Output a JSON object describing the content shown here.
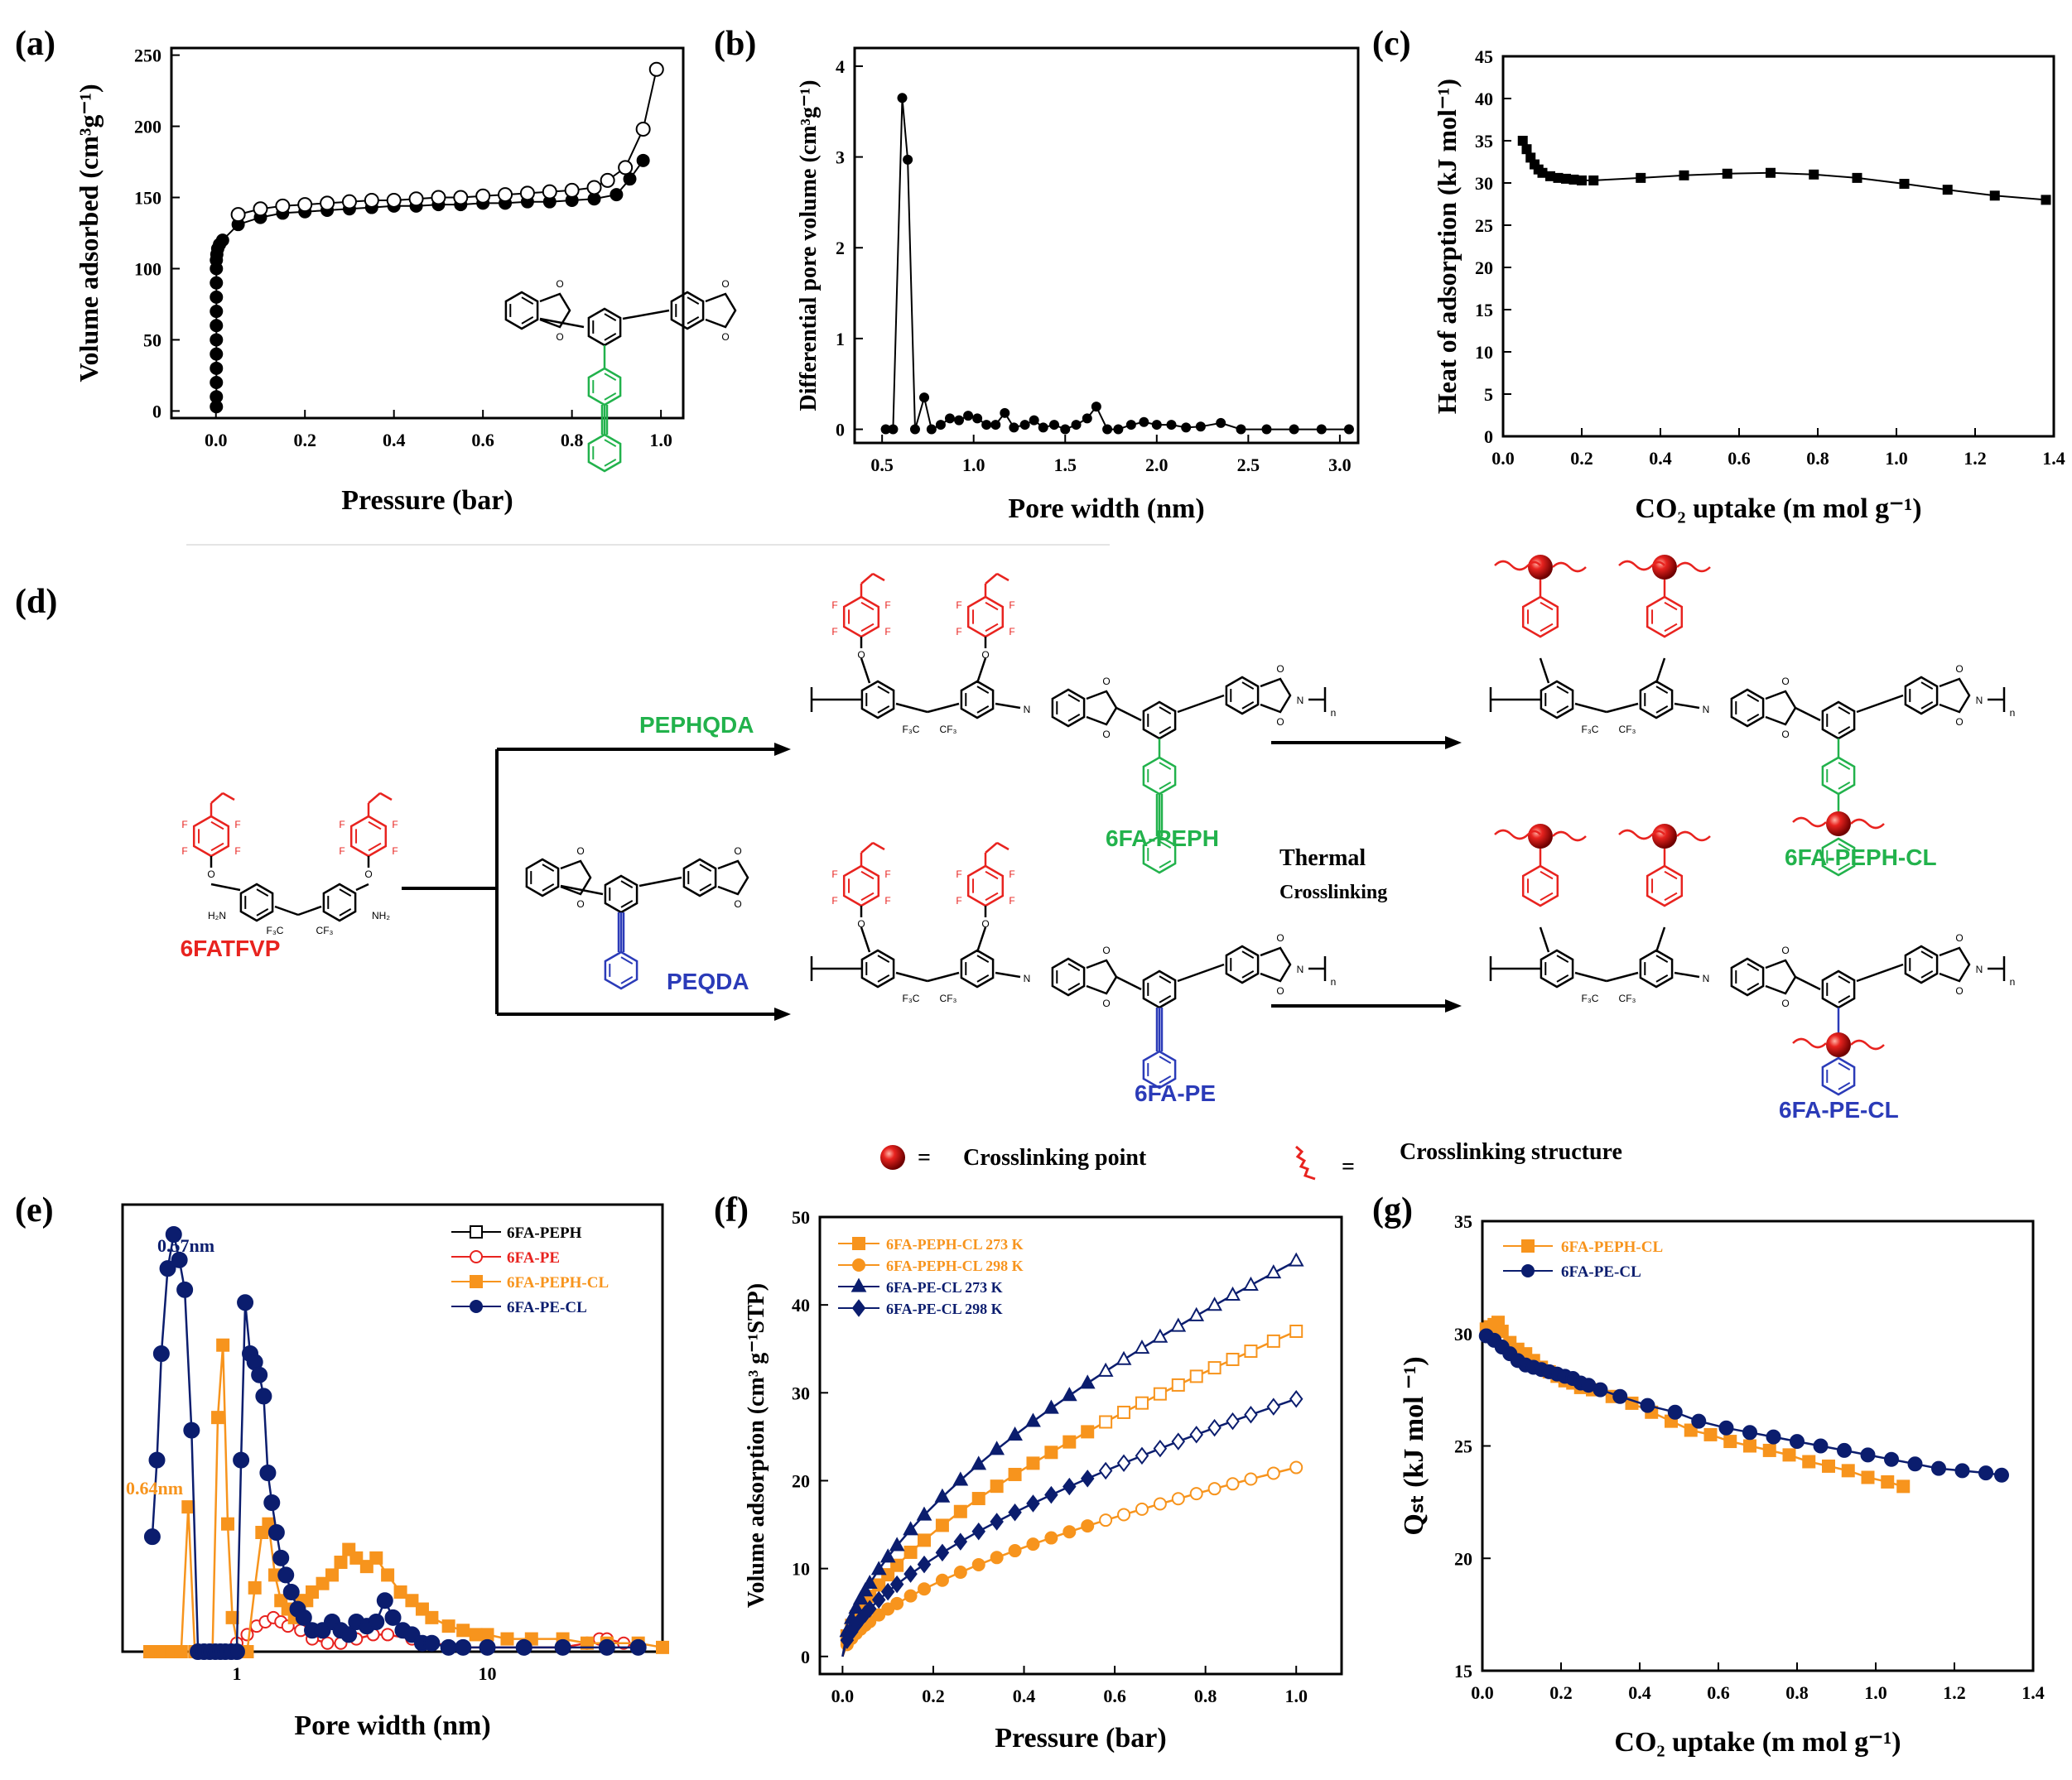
{
  "chart_data": [
    {
      "panel": "(a)",
      "type": "scatter",
      "xlabel": "Pressure (bar)",
      "ylabel": "Volume adsorbed (cm³g⁻¹)",
      "xlim": [
        -0.1,
        1.05
      ],
      "ylim": [
        -5,
        255
      ],
      "xticks": [
        "0.0",
        "0.2",
        "0.4",
        "0.6",
        "0.8",
        "1.0"
      ],
      "yticks": [
        "0",
        "50",
        "100",
        "150",
        "200",
        "250"
      ],
      "series": [
        {
          "name": "",
          "marker": "filled-circle",
          "x": [
            0.001,
            0.001,
            0.001,
            0.001,
            0.001,
            0.001,
            0.001,
            0.001,
            0.001,
            0.001,
            0.001,
            0.001,
            0.002,
            0.004,
            0.008,
            0.015,
            0.05,
            0.1,
            0.15,
            0.2,
            0.25,
            0.3,
            0.35,
            0.4,
            0.45,
            0.5,
            0.55,
            0.6,
            0.65,
            0.7,
            0.75,
            0.8,
            0.85,
            0.9,
            0.93,
            0.96
          ],
          "y": [
            3,
            10,
            20,
            30,
            40,
            50,
            60,
            70,
            80,
            90,
            100,
            106,
            110,
            114,
            117,
            120,
            131,
            136,
            139,
            140,
            141,
            142,
            143,
            144,
            144,
            145,
            145,
            146,
            146,
            147,
            147,
            148,
            149,
            152,
            163,
            176
          ]
        },
        {
          "name": "",
          "marker": "open-circle",
          "x": [
            0.05,
            0.1,
            0.15,
            0.2,
            0.25,
            0.3,
            0.35,
            0.4,
            0.45,
            0.5,
            0.55,
            0.6,
            0.65,
            0.7,
            0.75,
            0.8,
            0.85,
            0.88,
            0.92,
            0.96,
            0.99
          ],
          "y": [
            138,
            142,
            144,
            145,
            146,
            147,
            148,
            148,
            149,
            150,
            150,
            151,
            152,
            153,
            154,
            155,
            157,
            162,
            171,
            198,
            240
          ]
        }
      ]
    },
    {
      "panel": "(b)",
      "type": "line",
      "xlabel": "Pore width (nm)",
      "ylabel": "Differential pore volume (cm³g⁻¹)",
      "xlim": [
        0.35,
        3.1
      ],
      "ylim": [
        -0.15,
        4.2
      ],
      "xticks": [
        "0.5",
        "1.0",
        "1.5",
        "2.0",
        "2.5",
        "3.0"
      ],
      "yticks": [
        "0",
        "1",
        "2",
        "3",
        "4"
      ],
      "x": [
        0.52,
        0.56,
        0.61,
        0.64,
        0.68,
        0.73,
        0.77,
        0.82,
        0.87,
        0.92,
        0.97,
        1.02,
        1.07,
        1.12,
        1.17,
        1.22,
        1.28,
        1.33,
        1.38,
        1.44,
        1.5,
        1.56,
        1.62,
        1.67,
        1.73,
        1.79,
        1.86,
        1.93,
        2.0,
        2.08,
        2.16,
        2.24,
        2.35,
        2.46,
        2.6,
        2.75,
        2.9,
        3.05
      ],
      "y": [
        0.0,
        0.0,
        3.65,
        2.97,
        0.0,
        0.35,
        0.0,
        0.05,
        0.12,
        0.1,
        0.15,
        0.12,
        0.05,
        0.05,
        0.18,
        0.02,
        0.05,
        0.1,
        0.02,
        0.05,
        0.0,
        0.05,
        0.12,
        0.25,
        0.0,
        0.0,
        0.05,
        0.08,
        0.05,
        0.05,
        0.02,
        0.03,
        0.07,
        0.0,
        0.0,
        0.0,
        0.0,
        0.0
      ]
    },
    {
      "panel": "(c)",
      "type": "line",
      "xlabel": "CO₂ uptake (m mol g⁻¹)",
      "ylabel": "Heat of adsorption (kJ mol⁻¹)",
      "xlim": [
        0.0,
        1.4
      ],
      "ylim": [
        0,
        45
      ],
      "xticks": [
        "0.0",
        "0.2",
        "0.4",
        "0.6",
        "0.8",
        "1.0",
        "1.2",
        "1.4"
      ],
      "yticks": [
        "0",
        "5",
        "10",
        "15",
        "20",
        "25",
        "30",
        "35",
        "40",
        "45"
      ],
      "x": [
        0.05,
        0.06,
        0.07,
        0.08,
        0.09,
        0.1,
        0.12,
        0.14,
        0.16,
        0.18,
        0.2,
        0.23,
        0.35,
        0.46,
        0.57,
        0.68,
        0.79,
        0.9,
        1.02,
        1.13,
        1.25,
        1.38
      ],
      "y": [
        35.0,
        34.0,
        33.0,
        32.2,
        31.6,
        31.2,
        30.8,
        30.6,
        30.5,
        30.4,
        30.3,
        30.3,
        30.6,
        30.9,
        31.1,
        31.2,
        31.0,
        30.6,
        29.9,
        29.2,
        28.5,
        28.0
      ]
    },
    {
      "panel": "(e)",
      "type": "line",
      "xlabel": "Pore width (nm)",
      "xscale": "log",
      "xlim": [
        0.35,
        50
      ],
      "ylim": [
        0,
        1.05
      ],
      "xticks": [
        "1",
        "10"
      ],
      "annotations": [
        "0.57nm",
        "0.64nm"
      ],
      "legend": [
        "6FA-PEPH",
        "6FA-PE",
        "6FA-PEPH-CL",
        "6FA-PE-CL"
      ],
      "series": [
        {
          "name": "6FA-PE-CL",
          "color": "#0b1d6e",
          "x": [
            0.46,
            0.48,
            0.5,
            0.53,
            0.56,
            0.59,
            0.62,
            0.66,
            0.7,
            0.74,
            0.78,
            0.82,
            0.86,
            0.9,
            0.95,
            1.0,
            1.04,
            1.08,
            1.13,
            1.18,
            1.23,
            1.28,
            1.33,
            1.38,
            1.44,
            1.5,
            1.57,
            1.65,
            1.75,
            1.85,
            2.0,
            2.2,
            2.4,
            2.6,
            2.8,
            3.0,
            3.3,
            3.6,
            3.9,
            4.2,
            4.6,
            5.0,
            5.5,
            6.0,
            7.0,
            8.0,
            10,
            14,
            20,
            30,
            40
          ],
          "y": [
            0.27,
            0.45,
            0.7,
            0.9,
            0.98,
            0.92,
            0.85,
            0.52,
            0.0,
            0.0,
            0.0,
            0.0,
            0.0,
            0.0,
            0.0,
            0.0,
            0.45,
            0.82,
            0.7,
            0.68,
            0.65,
            0.6,
            0.42,
            0.35,
            0.28,
            0.22,
            0.18,
            0.14,
            0.1,
            0.08,
            0.05,
            0.05,
            0.07,
            0.05,
            0.04,
            0.07,
            0.06,
            0.07,
            0.12,
            0.08,
            0.05,
            0.04,
            0.02,
            0.02,
            0.01,
            0.01,
            0.01,
            0.01,
            0.01,
            0.01,
            0.01
          ]
        },
        {
          "name": "6FA-PEPH-CL",
          "color": "#f7941d",
          "x": [
            0.45,
            0.5,
            0.55,
            0.6,
            0.64,
            0.68,
            0.72,
            0.76,
            0.8,
            0.84,
            0.88,
            0.92,
            0.96,
            1.02,
            1.1,
            1.18,
            1.26,
            1.34,
            1.42,
            1.5,
            1.6,
            1.7,
            1.8,
            1.9,
            2.0,
            2.2,
            2.4,
            2.6,
            2.8,
            3.0,
            3.3,
            3.6,
            4.0,
            4.5,
            5.0,
            5.5,
            6.0,
            7.0,
            8.0,
            9.0,
            10,
            12,
            15,
            20,
            25,
            30,
            40,
            50
          ],
          "y": [
            0.0,
            0.0,
            0.0,
            0.0,
            0.34,
            0.0,
            0.0,
            0.0,
            0.0,
            0.55,
            0.72,
            0.3,
            0.08,
            0.0,
            0.0,
            0.15,
            0.28,
            0.3,
            0.18,
            0.12,
            0.1,
            0.08,
            0.12,
            0.12,
            0.14,
            0.16,
            0.18,
            0.21,
            0.24,
            0.22,
            0.2,
            0.22,
            0.18,
            0.14,
            0.12,
            0.1,
            0.08,
            0.06,
            0.05,
            0.04,
            0.04,
            0.03,
            0.03,
            0.03,
            0.02,
            0.02,
            0.02,
            0.01
          ]
        },
        {
          "name": "6FA-PE",
          "color": "#e8231f",
          "x": [
            0.9,
            1.0,
            1.1,
            1.2,
            1.3,
            1.4,
            1.5,
            1.6,
            1.8,
            2.0,
            2.3,
            2.6,
            3.0,
            3.5,
            4.0,
            5.0,
            6.0,
            8.0,
            10,
            14,
            20,
            25,
            28,
            30,
            35,
            40
          ],
          "y": [
            0.0,
            0.02,
            0.04,
            0.06,
            0.07,
            0.08,
            0.07,
            0.06,
            0.05,
            0.03,
            0.02,
            0.02,
            0.03,
            0.04,
            0.04,
            0.03,
            0.02,
            0.01,
            0.01,
            0.01,
            0.01,
            0.02,
            0.03,
            0.03,
            0.02,
            0.01
          ]
        }
      ]
    },
    {
      "panel": "(f)",
      "type": "line",
      "xlabel": "Pressure (bar)",
      "ylabel": "Volume adsorption (cm³ g⁻¹STP)",
      "xlim": [
        -0.05,
        1.1
      ],
      "ylim": [
        -2,
        50
      ],
      "xticks": [
        "0.0",
        "0.2",
        "0.4",
        "0.6",
        "0.8",
        "1.0"
      ],
      "yticks": [
        "0",
        "10",
        "20",
        "30",
        "40",
        "50"
      ],
      "series": [
        {
          "name": "6FA-PEPH-CL 273 K",
          "color": "#f7941d",
          "marker": "square",
          "a": 37.0
        },
        {
          "name": "6FA-PEPH-CL 298 K",
          "color": "#f7941d",
          "marker": "circle",
          "a": 21.5
        },
        {
          "name": "6FA-PE-CL 273 K",
          "color": "#0b1d6e",
          "marker": "triangle",
          "a": 45.0
        },
        {
          "name": "6FA-PE-CL 298 K",
          "color": "#0b1d6e",
          "marker": "diamond",
          "a": 29.3
        }
      ],
      "x": [
        0.0,
        0.01,
        0.02,
        0.03,
        0.04,
        0.05,
        0.06,
        0.08,
        0.1,
        0.12,
        0.15,
        0.18,
        0.22,
        0.26,
        0.3,
        0.34,
        0.38,
        0.42,
        0.46,
        0.5,
        0.54,
        0.58,
        0.62,
        0.66,
        0.7,
        0.74,
        0.78,
        0.82,
        0.86,
        0.9,
        0.95,
        1.0
      ]
    },
    {
      "panel": "(g)",
      "type": "line",
      "xlabel": "CO₂ uptake (m mol g⁻¹)",
      "ylabel": "Qₛₜ (kJ mol ⁻¹)",
      "xlim": [
        0.0,
        1.4
      ],
      "ylim": [
        15,
        35
      ],
      "xticks": [
        "0.0",
        "0.2",
        "0.4",
        "0.6",
        "0.8",
        "1.0",
        "1.2",
        "1.4"
      ],
      "yticks": [
        "15",
        "20",
        "25",
        "30",
        "35"
      ],
      "series": [
        {
          "name": "6FA-PEPH-CL",
          "color": "#f7941d",
          "x": [
            0.01,
            0.02,
            0.03,
            0.04,
            0.05,
            0.07,
            0.09,
            0.11,
            0.13,
            0.15,
            0.17,
            0.19,
            0.21,
            0.23,
            0.25,
            0.28,
            0.33,
            0.38,
            0.43,
            0.48,
            0.53,
            0.58,
            0.63,
            0.68,
            0.73,
            0.78,
            0.83,
            0.88,
            0.93,
            0.98,
            1.03,
            1.07
          ],
          "y": [
            30.2,
            30.3,
            30.4,
            30.5,
            30.1,
            29.6,
            29.3,
            29.1,
            28.8,
            28.5,
            28.3,
            28.1,
            27.9,
            27.8,
            27.6,
            27.5,
            27.2,
            26.9,
            26.5,
            26.1,
            25.7,
            25.5,
            25.2,
            25.0,
            24.8,
            24.6,
            24.3,
            24.1,
            23.9,
            23.6,
            23.4,
            23.2
          ]
        },
        {
          "name": "6FA-PE-CL",
          "color": "#0b1d6e",
          "x": [
            0.01,
            0.03,
            0.05,
            0.07,
            0.09,
            0.11,
            0.13,
            0.15,
            0.17,
            0.19,
            0.21,
            0.23,
            0.25,
            0.27,
            0.3,
            0.35,
            0.42,
            0.49,
            0.55,
            0.62,
            0.68,
            0.74,
            0.8,
            0.86,
            0.92,
            0.98,
            1.04,
            1.1,
            1.16,
            1.22,
            1.28,
            1.32
          ],
          "y": [
            29.9,
            29.7,
            29.4,
            29.1,
            28.8,
            28.6,
            28.5,
            28.4,
            28.3,
            28.2,
            28.1,
            28.0,
            27.8,
            27.7,
            27.5,
            27.2,
            26.8,
            26.5,
            26.1,
            25.8,
            25.6,
            25.4,
            25.2,
            25.0,
            24.8,
            24.6,
            24.4,
            24.2,
            24.0,
            23.9,
            23.8,
            23.7
          ]
        }
      ]
    }
  ],
  "panel_labels": [
    "(a)",
    "(b)",
    "(c)",
    "(d)",
    "(e)",
    "(f)",
    "(g)"
  ],
  "scheme": {
    "monomer": "6FATFVP",
    "dianhydride_1": "PEPHQDA",
    "dianhydride_2": "PEQDA",
    "polymer_1": "6FA-PEPH",
    "polymer_2": "6FA-PE",
    "crosslinked_1": "6FA-PEPH-CL",
    "crosslinked_2": "6FA-PE-CL",
    "step_title": "Thermal",
    "step_subtitle": "Crosslinking",
    "legend_point": "Crosslinking point",
    "legend_structure": "Crosslinking structure",
    "equals": "=",
    "atoms": {
      "F": "F",
      "O": "O",
      "CF3": "CF₃",
      "F3C": "F₃C",
      "NH2": "NH₂",
      "H2N": "H₂N",
      "N": "N",
      "n": "n"
    }
  }
}
